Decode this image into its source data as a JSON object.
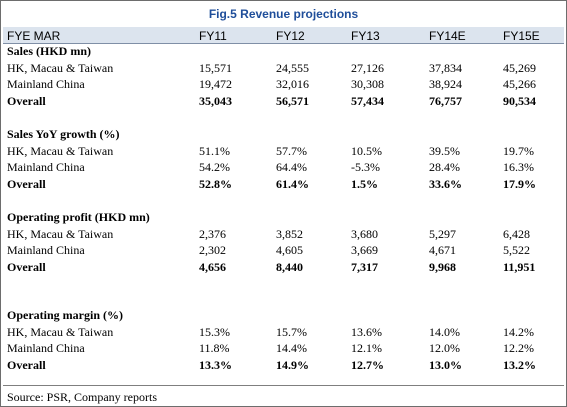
{
  "title": "Fig.5 Revenue projections",
  "header": {
    "label": "FYE MAR",
    "columns": [
      "FY11",
      "FY12",
      "FY13",
      "FY14E",
      "FY15E"
    ]
  },
  "sections": [
    {
      "heading": "Sales (HKD mn)",
      "rows": [
        {
          "label": "HK, Macau & Taiwan",
          "values": [
            "15,571",
            "24,555",
            "27,126",
            "37,834",
            "45,269"
          ]
        },
        {
          "label": "Mainland China",
          "values": [
            "19,472",
            "32,016",
            "30,308",
            "38,924",
            "45,266"
          ]
        },
        {
          "label": "Overall",
          "values": [
            "35,043",
            "56,571",
            "57,434",
            "76,757",
            "90,534"
          ]
        }
      ]
    },
    {
      "heading": "Sales YoY growth (%)",
      "rows": [
        {
          "label": "HK, Macau & Taiwan",
          "values": [
            "51.1%",
            "57.7%",
            "10.5%",
            "39.5%",
            "19.7%"
          ]
        },
        {
          "label": "Mainland China",
          "values": [
            "54.2%",
            "64.4%",
            "-5.3%",
            "28.4%",
            "16.3%"
          ]
        },
        {
          "label": "Overall",
          "values": [
            "52.8%",
            "61.4%",
            "1.5%",
            "33.6%",
            "17.9%"
          ]
        }
      ]
    },
    {
      "heading": "Operating profit (HKD mn)",
      "rows": [
        {
          "label": "HK, Macau & Taiwan",
          "values": [
            "2,376",
            "3,852",
            "3,680",
            "5,297",
            "6,428"
          ]
        },
        {
          "label": "Mainland China",
          "values": [
            "2,302",
            "4,605",
            "3,669",
            "4,671",
            "5,522"
          ]
        },
        {
          "label": "Overall",
          "values": [
            "4,656",
            "8,440",
            "7,317",
            "9,968",
            "11,951"
          ]
        }
      ]
    },
    {
      "heading": "Operating margin (%)",
      "rows": [
        {
          "label": "HK, Macau & Taiwan",
          "values": [
            "15.3%",
            "15.7%",
            "13.6%",
            "14.0%",
            "14.2%"
          ]
        },
        {
          "label": "Mainland China",
          "values": [
            "11.8%",
            "14.4%",
            "12.1%",
            "12.0%",
            "12.2%"
          ]
        },
        {
          "label": "Overall",
          "values": [
            "13.3%",
            "14.9%",
            "12.7%",
            "13.0%",
            "13.2%"
          ]
        }
      ]
    }
  ],
  "source": "Source: PSR, Company reports"
}
